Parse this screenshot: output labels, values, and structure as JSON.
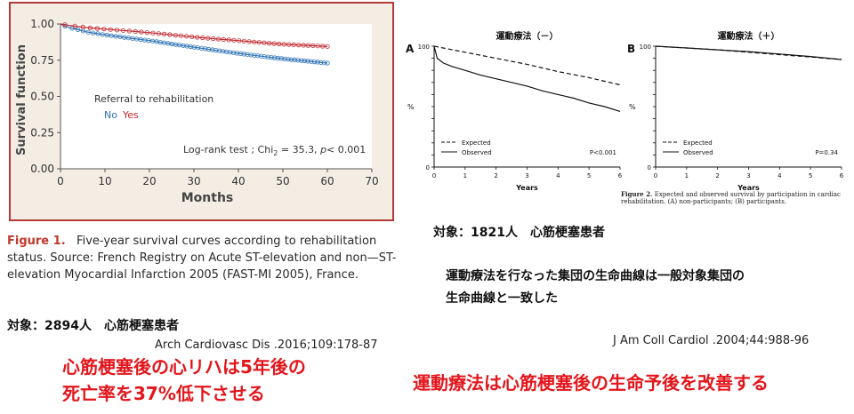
{
  "chart_data": [
    {
      "id": "left",
      "type": "line",
      "xlabel": "Months",
      "ylabel": "Survival function",
      "xlim": [
        0,
        70
      ],
      "ylim": [
        0,
        1
      ],
      "xticks": [
        "0",
        "10",
        "20",
        "30",
        "40",
        "50",
        "60",
        "70"
      ],
      "yticks": [
        "0.00",
        "0.25",
        "0.50",
        "0.75",
        "1.00"
      ],
      "legend_title": "Referral to rehabilitation",
      "series": [
        {
          "name": "No",
          "color": "#2e74b5",
          "x": [
            0,
            1,
            2,
            4,
            6,
            8,
            10,
            15,
            20,
            25,
            30,
            35,
            40,
            45,
            50,
            55,
            60
          ],
          "values": [
            1.0,
            0.985,
            0.975,
            0.96,
            0.945,
            0.935,
            0.925,
            0.905,
            0.885,
            0.862,
            0.84,
            0.818,
            0.797,
            0.778,
            0.76,
            0.745,
            0.73
          ]
        },
        {
          "name": "Yes",
          "color": "#c1272d",
          "x": [
            0,
            1,
            2,
            4,
            6,
            8,
            10,
            15,
            20,
            25,
            30,
            35,
            40,
            45,
            50,
            55,
            60
          ],
          "values": [
            1.0,
            0.995,
            0.99,
            0.983,
            0.975,
            0.97,
            0.965,
            0.953,
            0.94,
            0.925,
            0.91,
            0.897,
            0.885,
            0.872,
            0.86,
            0.853,
            0.845
          ]
        }
      ],
      "annotation": {
        "prefix": "Log-rank test ; Chi",
        "sub": "2",
        "mid": " = 35.3, ",
        "p": "p",
        "suffix": "< 0.001"
      }
    },
    {
      "id": "A",
      "panel_label": "A",
      "type": "line",
      "title": "運動療法（－）",
      "xlabel": "Years",
      "ylabel": "%",
      "xlim": [
        0,
        6
      ],
      "ylim": [
        0,
        100
      ],
      "xticks": [
        "0",
        "1",
        "2",
        "3",
        "4",
        "5",
        "6"
      ],
      "yticks": [
        "0",
        "10",
        "20",
        "30",
        "40",
        "50",
        "60",
        "70",
        "80",
        "90",
        "100"
      ],
      "series": [
        {
          "name": "Expected",
          "style": "dashed",
          "x": [
            0,
            1,
            2,
            3,
            4,
            5,
            6
          ],
          "values": [
            100,
            95,
            90,
            85,
            79,
            74,
            68
          ]
        },
        {
          "name": "Observed",
          "style": "solid",
          "x": [
            0,
            0.1,
            0.3,
            0.6,
            1,
            1.5,
            2,
            2.5,
            3,
            3.5,
            4,
            4.5,
            5,
            5.5,
            6
          ],
          "values": [
            100,
            90,
            86,
            83,
            80,
            76,
            73,
            70,
            67,
            63,
            60,
            57,
            53,
            50,
            46
          ]
        }
      ],
      "pvalue": "P<0.001"
    },
    {
      "id": "B",
      "panel_label": "B",
      "type": "line",
      "title": "運動療法（＋）",
      "xlabel": "Years",
      "ylabel": "%",
      "xlim": [
        0,
        6
      ],
      "ylim": [
        0,
        100
      ],
      "xticks": [
        "0",
        "1",
        "2",
        "3",
        "4",
        "5",
        "6"
      ],
      "yticks": [
        "0",
        "10",
        "20",
        "30",
        "40",
        "50",
        "60",
        "70",
        "80",
        "90",
        "100"
      ],
      "series": [
        {
          "name": "Expected",
          "style": "dashed",
          "x": [
            0,
            1,
            2,
            3,
            4,
            5,
            6
          ],
          "values": [
            100,
            98.5,
            97,
            95,
            93,
            91,
            89
          ]
        },
        {
          "name": "Observed",
          "style": "solid",
          "x": [
            0,
            1,
            2,
            3,
            4,
            5,
            6
          ],
          "values": [
            100,
            98.5,
            97,
            95.5,
            93.5,
            91.5,
            89
          ]
        }
      ],
      "pvalue": "P=0.34"
    }
  ],
  "fig1_caption": {
    "label": "Figure 1.",
    "text": "Five-year survival curves according to rehabilitation status. Source: French Registry on Acute ST-elevation and non—ST-elevation Myocardial Infarction 2005 (FAST-MI 2005), France."
  },
  "fig2_caption": {
    "label": "Figure 2.",
    "text": " Expected and observed survival by participation in cardiac rehabilitation. (A) non-participants; (B) participants."
  },
  "subject_left": "対象：2894人　心筋梗塞患者",
  "subject_right": "対象：1821人　心筋梗塞患者",
  "note_line1": "運動療法を行なった集団の生命曲線は一般対象集団の",
  "note_line2": "生命曲線と一致した",
  "ref_left": "Arch Cardiovasc Dis .2016;109:178-87",
  "ref_right": "J Am Coll Cardiol .2004;44:988-96",
  "conclusion_left_1": "心筋梗塞後の心リハは5年後の",
  "conclusion_left_2": "死亡率を37%低下させる",
  "conclusion_right": "運動療法は心筋梗塞後の生命予後を改善する"
}
